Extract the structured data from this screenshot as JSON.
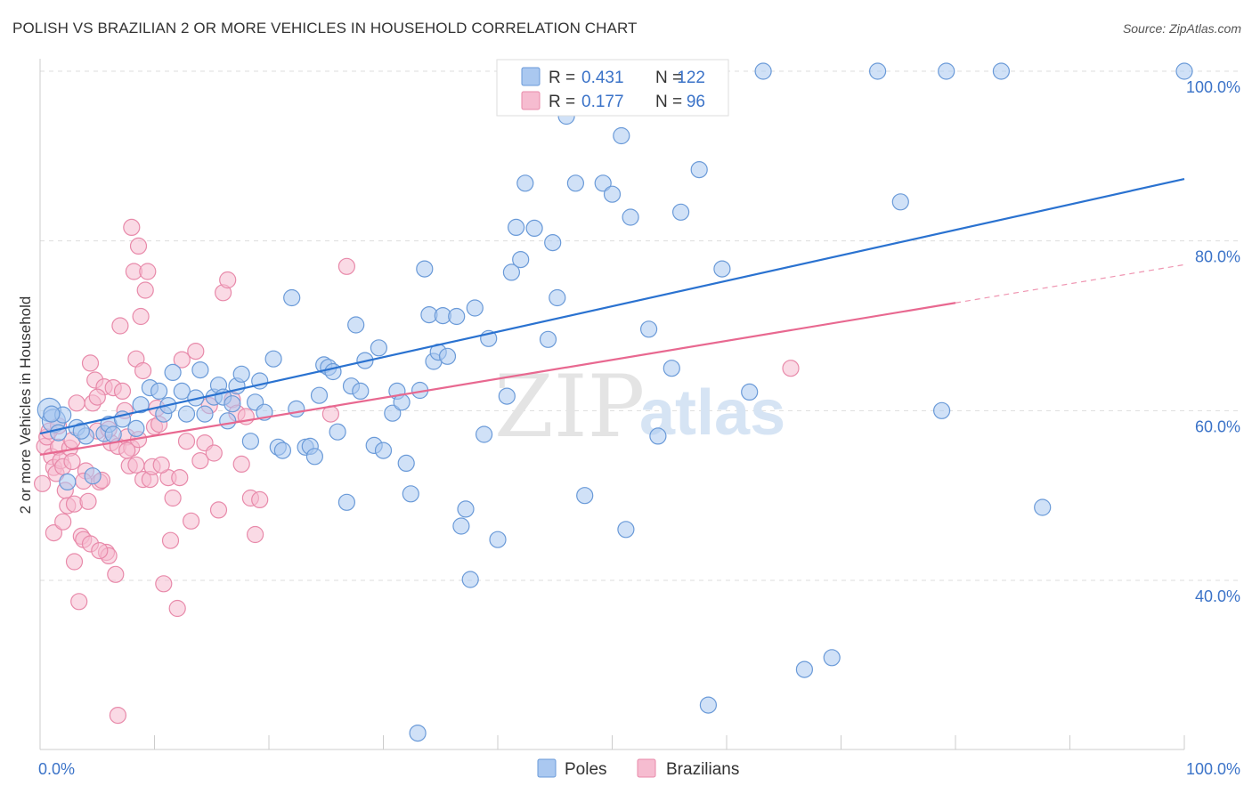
{
  "title": "POLISH VS BRAZILIAN 2 OR MORE VEHICLES IN HOUSEHOLD CORRELATION CHART",
  "source": "Source: ZipAtlas.com",
  "colors": {
    "poles_fill": "#aac8f0",
    "poles_stroke": "#6a9ad8",
    "poles_line": "#2a72d0",
    "brazilians_fill": "#f6bcd0",
    "brazilians_stroke": "#e88aaa",
    "brazilians_line": "#e86890",
    "axis_text": "#3b73c8",
    "grid": "#dddddd"
  },
  "watermark": {
    "part1": "ZIP",
    "part2": "atlas"
  },
  "legend_top": {
    "rows": [
      {
        "r_label": "R =",
        "r_value": "0.431",
        "n_label": "N =",
        "n_value": "122"
      },
      {
        "r_label": "R =",
        "r_value": "0.177",
        "n_label": "N =",
        "n_value": "96"
      }
    ]
  },
  "legend_bottom": {
    "poles": "Poles",
    "brazilians": "Brazilians"
  },
  "chart_data": {
    "type": "scatter",
    "xlabel": "",
    "ylabel": "2 or more Vehicles in Household",
    "xlim": [
      0,
      100
    ],
    "ylim": [
      20,
      100
    ],
    "x_tick_labels": [
      {
        "value": 0,
        "label": "0.0%"
      },
      {
        "value": 100,
        "label": "100.0%"
      }
    ],
    "y_tick_labels": [
      {
        "value": 100,
        "label": "100.0%"
      },
      {
        "value": 80,
        "label": "80.0%"
      },
      {
        "value": 60,
        "label": "60.0%"
      },
      {
        "value": 40,
        "label": "40.0%"
      }
    ],
    "series": [
      {
        "name": "Poles",
        "R": 0.431,
        "N": 122,
        "trend": {
          "x": [
            0,
            100
          ],
          "y": [
            57.3,
            87.3
          ]
        },
        "points": [
          [
            0.8,
            60.1
          ],
          [
            1.2,
            58.8
          ],
          [
            1.6,
            57.4
          ],
          [
            2.0,
            59.5
          ],
          [
            2.4,
            51.6
          ],
          [
            3.2,
            58.0
          ],
          [
            4.0,
            57.0
          ],
          [
            4.6,
            52.3
          ],
          [
            5.6,
            57.3
          ],
          [
            6.0,
            58.4
          ],
          [
            6.4,
            57.2
          ],
          [
            7.2,
            59.0
          ],
          [
            8.4,
            57.9
          ],
          [
            8.8,
            60.7
          ],
          [
            9.6,
            62.7
          ],
          [
            10.4,
            62.3
          ],
          [
            10.8,
            59.6
          ],
          [
            11.2,
            60.6
          ],
          [
            11.6,
            64.5
          ],
          [
            12.4,
            62.3
          ],
          [
            12.8,
            59.6
          ],
          [
            13.6,
            61.5
          ],
          [
            14.0,
            64.8
          ],
          [
            14.4,
            59.6
          ],
          [
            15.2,
            61.6
          ],
          [
            15.6,
            63.0
          ],
          [
            16.0,
            61.6
          ],
          [
            16.4,
            58.8
          ],
          [
            16.8,
            60.8
          ],
          [
            17.2,
            62.9
          ],
          [
            17.6,
            64.3
          ],
          [
            18.4,
            56.4
          ],
          [
            18.8,
            61.0
          ],
          [
            19.2,
            63.5
          ],
          [
            19.6,
            59.8
          ],
          [
            20.4,
            66.1
          ],
          [
            20.8,
            55.7
          ],
          [
            21.2,
            55.3
          ],
          [
            22.0,
            73.3
          ],
          [
            22.4,
            60.2
          ],
          [
            23.2,
            55.7
          ],
          [
            23.6,
            55.8
          ],
          [
            24.0,
            54.6
          ],
          [
            24.4,
            61.8
          ],
          [
            24.8,
            65.4
          ],
          [
            25.2,
            65.1
          ],
          [
            25.6,
            64.6
          ],
          [
            26.0,
            57.5
          ],
          [
            26.8,
            49.2
          ],
          [
            27.2,
            62.9
          ],
          [
            27.6,
            70.1
          ],
          [
            28.0,
            62.3
          ],
          [
            28.4,
            65.9
          ],
          [
            29.2,
            55.9
          ],
          [
            29.6,
            67.4
          ],
          [
            30.0,
            55.3
          ],
          [
            30.8,
            59.7
          ],
          [
            31.2,
            62.3
          ],
          [
            31.6,
            61.0
          ],
          [
            32.0,
            53.8
          ],
          [
            32.4,
            50.2
          ],
          [
            33.2,
            62.4
          ],
          [
            33.6,
            76.7
          ],
          [
            34.0,
            71.3
          ],
          [
            34.4,
            65.8
          ],
          [
            34.8,
            66.9
          ],
          [
            35.2,
            71.2
          ],
          [
            35.6,
            66.4
          ],
          [
            36.4,
            71.1
          ],
          [
            37.2,
            48.4
          ],
          [
            36.8,
            46.4
          ],
          [
            37.6,
            40.1
          ],
          [
            38.0,
            72.1
          ],
          [
            38.8,
            57.2
          ],
          [
            39.2,
            68.5
          ],
          [
            40.0,
            44.8
          ],
          [
            40.8,
            61.7
          ],
          [
            41.2,
            76.3
          ],
          [
            41.6,
            81.6
          ],
          [
            42.0,
            77.8
          ],
          [
            42.4,
            86.8
          ],
          [
            43.2,
            81.5
          ],
          [
            44.4,
            68.4
          ],
          [
            44.8,
            79.8
          ],
          [
            45.2,
            73.3
          ],
          [
            46.0,
            94.7
          ],
          [
            46.8,
            86.8
          ],
          [
            47.6,
            50.0
          ],
          [
            49.2,
            86.8
          ],
          [
            50.0,
            85.5
          ],
          [
            50.8,
            92.4
          ],
          [
            51.2,
            46.0
          ],
          [
            51.6,
            82.8
          ],
          [
            53.2,
            69.6
          ],
          [
            54.0,
            57.0
          ],
          [
            55.2,
            65.0
          ],
          [
            56.0,
            83.4
          ],
          [
            57.6,
            88.4
          ],
          [
            59.6,
            76.7
          ],
          [
            62.0,
            62.2
          ],
          [
            63.2,
            100.0
          ],
          [
            66.8,
            29.5
          ],
          [
            69.2,
            30.9
          ],
          [
            73.2,
            100.0
          ],
          [
            75.2,
            84.6
          ],
          [
            78.8,
            60.0
          ],
          [
            79.2,
            100.0
          ],
          [
            84.0,
            100.0
          ],
          [
            87.6,
            48.6
          ],
          [
            100.0,
            100.0
          ],
          [
            48.0,
            100.0
          ],
          [
            52.4,
            100.0
          ],
          [
            58.4,
            25.3
          ],
          [
            33.0,
            22.0
          ],
          [
            1.0,
            59.6
          ],
          [
            3.6,
            57.6
          ],
          [
            45.6,
            100.0
          ],
          [
            50.4,
            100.0
          ]
        ]
      },
      {
        "name": "Brazilians",
        "R": 0.177,
        "N": 96,
        "trend": {
          "x": [
            0,
            80
          ],
          "y": [
            54.8,
            72.7
          ],
          "dashed_to": {
            "x": 100,
            "y": 77.2
          }
        },
        "points": [
          [
            0.2,
            51.4
          ],
          [
            0.4,
            55.8
          ],
          [
            0.6,
            56.9
          ],
          [
            0.8,
            57.6
          ],
          [
            1.0,
            54.6
          ],
          [
            1.2,
            53.3
          ],
          [
            1.4,
            52.6
          ],
          [
            1.6,
            55.7
          ],
          [
            1.8,
            54.1
          ],
          [
            2.0,
            53.4
          ],
          [
            2.2,
            50.6
          ],
          [
            2.4,
            48.8
          ],
          [
            2.6,
            55.6
          ],
          [
            2.8,
            54.0
          ],
          [
            3.0,
            49.0
          ],
          [
            3.2,
            60.9
          ],
          [
            3.4,
            37.5
          ],
          [
            3.6,
            45.2
          ],
          [
            3.8,
            44.8
          ],
          [
            4.0,
            52.9
          ],
          [
            4.2,
            49.3
          ],
          [
            4.4,
            65.6
          ],
          [
            4.6,
            60.9
          ],
          [
            4.8,
            63.6
          ],
          [
            5.0,
            57.6
          ],
          [
            5.2,
            51.6
          ],
          [
            5.4,
            51.8
          ],
          [
            5.6,
            62.8
          ],
          [
            5.8,
            43.3
          ],
          [
            6.0,
            42.9
          ],
          [
            6.2,
            56.2
          ],
          [
            6.4,
            62.7
          ],
          [
            6.6,
            40.7
          ],
          [
            6.8,
            55.8
          ],
          [
            7.0,
            70.0
          ],
          [
            7.2,
            62.3
          ],
          [
            7.4,
            60.0
          ],
          [
            7.6,
            56.9
          ],
          [
            7.8,
            53.5
          ],
          [
            8.0,
            55.6
          ],
          [
            8.2,
            76.4
          ],
          [
            8.4,
            66.1
          ],
          [
            8.6,
            56.6
          ],
          [
            8.8,
            71.1
          ],
          [
            9.0,
            51.9
          ],
          [
            9.2,
            74.2
          ],
          [
            9.4,
            76.4
          ],
          [
            9.6,
            51.9
          ],
          [
            9.8,
            53.4
          ],
          [
            10.0,
            58.1
          ],
          [
            10.2,
            60.3
          ],
          [
            10.4,
            58.4
          ],
          [
            10.8,
            39.6
          ],
          [
            11.2,
            52.1
          ],
          [
            11.6,
            49.7
          ],
          [
            12.0,
            36.7
          ],
          [
            12.4,
            66.0
          ],
          [
            12.8,
            56.4
          ],
          [
            13.2,
            47.0
          ],
          [
            13.6,
            67.0
          ],
          [
            14.0,
            54.1
          ],
          [
            14.4,
            56.2
          ],
          [
            14.8,
            60.6
          ],
          [
            15.2,
            55.0
          ],
          [
            15.6,
            48.3
          ],
          [
            16.0,
            73.9
          ],
          [
            16.4,
            75.4
          ],
          [
            16.8,
            61.3
          ],
          [
            17.2,
            59.7
          ],
          [
            17.6,
            53.7
          ],
          [
            18.0,
            59.3
          ],
          [
            18.4,
            49.7
          ],
          [
            18.8,
            45.4
          ],
          [
            19.2,
            49.5
          ],
          [
            6.8,
            24.1
          ],
          [
            8.0,
            81.6
          ],
          [
            8.6,
            79.4
          ],
          [
            25.4,
            59.6
          ],
          [
            26.8,
            77.0
          ],
          [
            65.6,
            65.0
          ],
          [
            1.2,
            45.6
          ],
          [
            2.0,
            46.9
          ],
          [
            3.0,
            42.2
          ],
          [
            4.4,
            44.3
          ],
          [
            5.2,
            43.5
          ],
          [
            5.0,
            61.6
          ],
          [
            6.0,
            57.8
          ],
          [
            7.6,
            55.3
          ],
          [
            8.4,
            53.6
          ],
          [
            9.0,
            64.7
          ],
          [
            10.6,
            53.6
          ],
          [
            11.4,
            44.7
          ],
          [
            12.2,
            52.1
          ],
          [
            1.6,
            58.2
          ],
          [
            2.8,
            56.5
          ],
          [
            3.8,
            51.7
          ]
        ]
      }
    ]
  }
}
